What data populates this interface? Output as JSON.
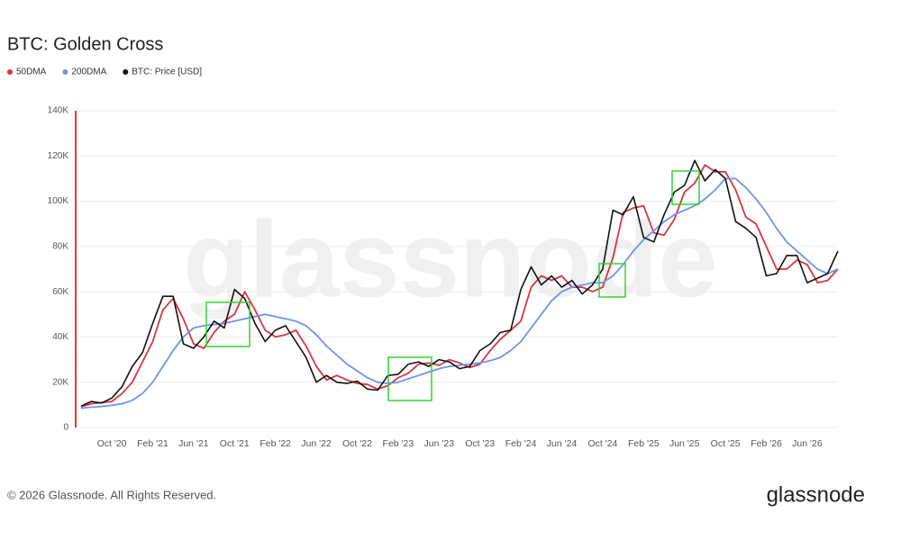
{
  "chart_data": {
    "type": "line",
    "title": "BTC: Golden Cross",
    "watermark": "glassnode",
    "footer": "© 2026 Glassnode. All Rights Reserved.",
    "brand": "glassnode",
    "categories": [
      null,
      null,
      null,
      "Oct '20",
      null,
      null,
      null,
      "Feb '21",
      null,
      null,
      null,
      "Jun '21",
      null,
      null,
      null,
      "Oct '21",
      null,
      null,
      null,
      "Feb '22",
      null,
      null,
      null,
      "Jun '22",
      null,
      null,
      null,
      "Oct '22",
      null,
      null,
      null,
      "Feb '23",
      null,
      null,
      null,
      "Jun '23",
      null,
      null,
      null,
      "Oct '23",
      null,
      null,
      null,
      "Feb '24",
      null,
      null,
      null,
      "Jun '24",
      null,
      null,
      null,
      "Oct '24",
      null,
      null,
      null,
      "Feb '25",
      null,
      null,
      null,
      "Jun '25",
      null,
      null,
      null,
      "Oct '25",
      null,
      null,
      null,
      "Feb '26",
      null,
      null,
      null,
      "Jun '26",
      null,
      null,
      null
    ],
    "series": [
      {
        "name": "50DMA",
        "color": "#d9363e",
        "values": [
          9200,
          10500,
          11000,
          11500,
          15000,
          20000,
          29000,
          38000,
          52000,
          57000,
          48000,
          37000,
          35000,
          42000,
          47000,
          50000,
          60000,
          52000,
          43000,
          40000,
          41000,
          43000,
          36000,
          27000,
          21000,
          23000,
          21000,
          19500,
          19000,
          17000,
          18500,
          22000,
          24000,
          28000,
          28500,
          27500,
          30000,
          28500,
          26500,
          28000,
          34000,
          39000,
          43000,
          47000,
          62000,
          67000,
          65000,
          67000,
          62000,
          62000,
          60000,
          62000,
          75000,
          95000,
          97000,
          98000,
          86000,
          85000,
          92000,
          104000,
          108000,
          116000,
          113000,
          113000,
          105000,
          93000,
          90000,
          80000,
          70000,
          70000,
          74000,
          72000,
          64000,
          65000,
          70000
        ]
      },
      {
        "name": "200DMA",
        "color": "#6f93ef",
        "values": [
          8500,
          9000,
          9300,
          9800,
          10500,
          12000,
          15000,
          20000,
          27000,
          34000,
          40000,
          44000,
          45000,
          45500,
          46000,
          47000,
          48000,
          49000,
          50000,
          49000,
          48000,
          47000,
          45000,
          41000,
          36000,
          32000,
          28000,
          25000,
          22000,
          20000,
          19500,
          20000,
          21500,
          23000,
          24500,
          26000,
          27000,
          27500,
          28000,
          28500,
          29500,
          31000,
          34000,
          38000,
          44000,
          50000,
          56000,
          60000,
          62000,
          63000,
          64000,
          64000,
          67000,
          72000,
          78000,
          83000,
          87000,
          91000,
          94000,
          96000,
          98000,
          101000,
          105000,
          110000,
          110000,
          106000,
          101000,
          95000,
          88000,
          82000,
          78000,
          74000,
          70000,
          68000,
          70000
        ]
      },
      {
        "name": "BTC: Price [USD]",
        "color": "#111111",
        "values": [
          9500,
          11500,
          10800,
          13000,
          18000,
          27000,
          33000,
          46000,
          58000,
          58000,
          37000,
          35000,
          40000,
          47000,
          44000,
          61000,
          57000,
          46000,
          38000,
          43000,
          45000,
          38000,
          31000,
          20000,
          23000,
          20000,
          19500,
          20500,
          17000,
          16500,
          23000,
          23500,
          28000,
          29000,
          27000,
          30000,
          29000,
          26000,
          27000,
          34000,
          37000,
          42000,
          43000,
          61000,
          71000,
          63000,
          67000,
          62000,
          65000,
          59000,
          63000,
          70000,
          96000,
          94000,
          102000,
          84000,
          82000,
          94000,
          104000,
          107000,
          118000,
          109000,
          114000,
          110000,
          91000,
          88000,
          84000,
          67000,
          68000,
          76000,
          76000,
          64000,
          66000,
          68000,
          78000
        ]
      }
    ],
    "ylim": [
      0,
      140000
    ],
    "yticks": [
      0,
      {
        "value": 20000,
        "label": "20K"
      },
      {
        "value": 40000,
        "label": "40K"
      },
      {
        "value": 60000,
        "label": "60K"
      },
      {
        "value": 80000,
        "label": "80K"
      },
      {
        "value": 100000,
        "label": "100K"
      },
      {
        "value": 120000,
        "label": "120K"
      },
      {
        "value": 140000,
        "label": "140K"
      }
    ],
    "grid": true
  }
}
